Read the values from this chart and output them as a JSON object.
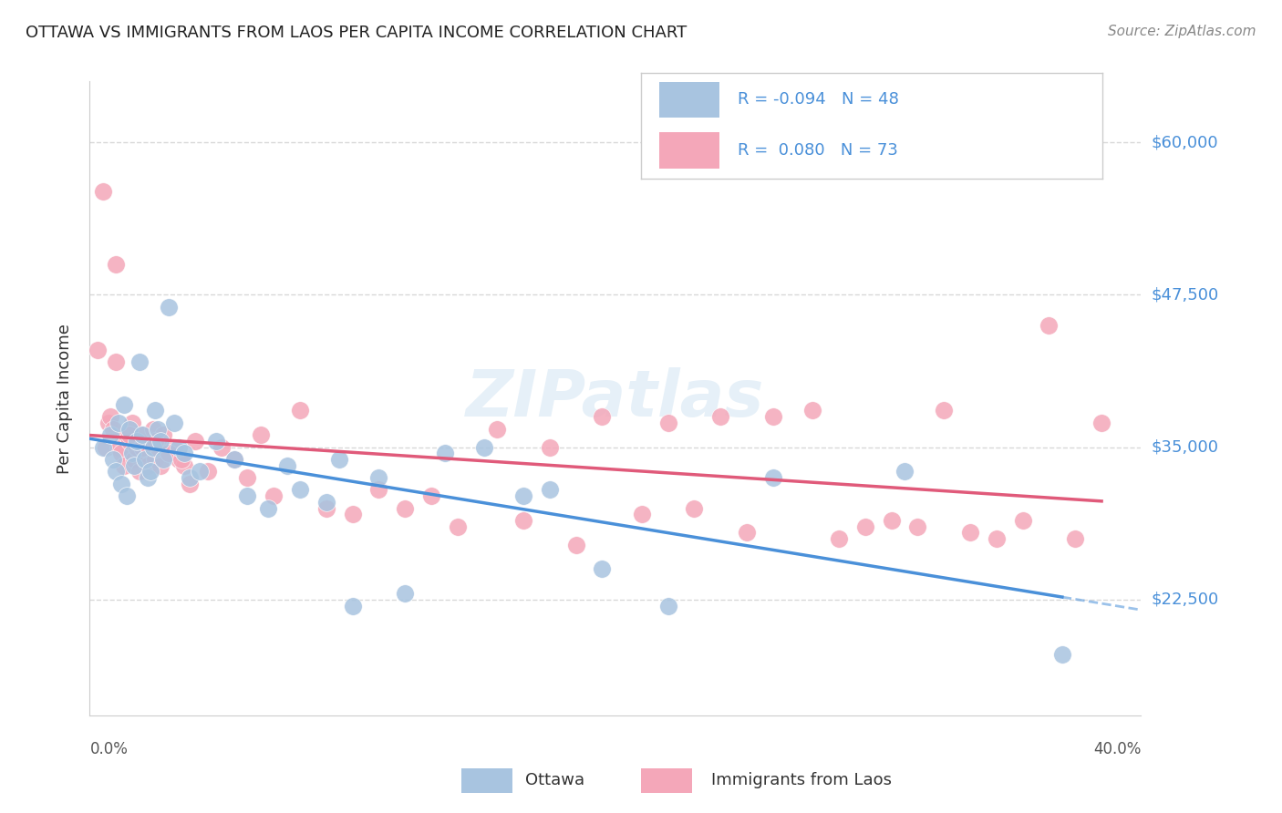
{
  "title": "OTTAWA VS IMMIGRANTS FROM LAOS PER CAPITA INCOME CORRELATION CHART",
  "source": "Source: ZipAtlas.com",
  "ylabel": "Per Capita Income",
  "ytick_labels": [
    "$22,500",
    "$35,000",
    "$47,500",
    "$60,000"
  ],
  "ytick_values": [
    22500,
    35000,
    47500,
    60000
  ],
  "ymin": 13000,
  "ymax": 65000,
  "xmin": 0.0,
  "xmax": 0.4,
  "legend_R": [
    -0.094,
    0.08
  ],
  "legend_N": [
    48,
    73
  ],
  "ottawa_color": "#a8c4e0",
  "laos_color": "#f4a7b9",
  "ottawa_line_color": "#4a90d9",
  "laos_line_color": "#e05a7a",
  "watermark": "ZIPatlas",
  "background_color": "#ffffff",
  "grid_color": "#d8d8d8",
  "ottawa_x": [
    0.005,
    0.008,
    0.009,
    0.01,
    0.011,
    0.012,
    0.013,
    0.014,
    0.015,
    0.016,
    0.017,
    0.018,
    0.019,
    0.02,
    0.021,
    0.022,
    0.023,
    0.024,
    0.025,
    0.026,
    0.027,
    0.028,
    0.03,
    0.032,
    0.034,
    0.036,
    0.038,
    0.042,
    0.048,
    0.055,
    0.06,
    0.068,
    0.075,
    0.08,
    0.09,
    0.095,
    0.1,
    0.11,
    0.12,
    0.135,
    0.15,
    0.165,
    0.175,
    0.195,
    0.22,
    0.26,
    0.31,
    0.37
  ],
  "ottawa_y": [
    35000,
    36000,
    34000,
    33000,
    37000,
    32000,
    38500,
    31000,
    36500,
    34500,
    33500,
    35500,
    42000,
    36000,
    34000,
    32500,
    33000,
    35000,
    38000,
    36500,
    35500,
    34000,
    46500,
    37000,
    35000,
    34500,
    32500,
    33000,
    35500,
    34000,
    31000,
    30000,
    33500,
    31500,
    30500,
    34000,
    22000,
    32500,
    23000,
    34500,
    35000,
    31000,
    31500,
    25000,
    22000,
    32500,
    33000,
    18000
  ],
  "laos_x": [
    0.003,
    0.005,
    0.006,
    0.007,
    0.008,
    0.009,
    0.01,
    0.011,
    0.012,
    0.013,
    0.014,
    0.015,
    0.016,
    0.017,
    0.018,
    0.019,
    0.02,
    0.021,
    0.022,
    0.023,
    0.024,
    0.025,
    0.026,
    0.027,
    0.028,
    0.03,
    0.032,
    0.034,
    0.036,
    0.038,
    0.04,
    0.045,
    0.05,
    0.055,
    0.06,
    0.065,
    0.07,
    0.08,
    0.09,
    0.1,
    0.11,
    0.12,
    0.13,
    0.14,
    0.155,
    0.165,
    0.175,
    0.185,
    0.195,
    0.21,
    0.22,
    0.23,
    0.24,
    0.25,
    0.26,
    0.275,
    0.285,
    0.295,
    0.305,
    0.315,
    0.325,
    0.335,
    0.345,
    0.355,
    0.365,
    0.375,
    0.385,
    0.01,
    0.015,
    0.02,
    0.025,
    0.03,
    0.035
  ],
  "laos_y": [
    43000,
    56000,
    35000,
    37000,
    37500,
    36500,
    42000,
    35000,
    34500,
    33500,
    36000,
    35500,
    37000,
    34000,
    35000,
    33000,
    36000,
    34500,
    33500,
    35000,
    36500,
    34000,
    35500,
    33500,
    36000,
    34500,
    35000,
    34000,
    33500,
    32000,
    35500,
    33000,
    35000,
    34000,
    32500,
    36000,
    31000,
    38000,
    30000,
    29500,
    31500,
    30000,
    31000,
    28500,
    36500,
    29000,
    35000,
    27000,
    37500,
    29500,
    37000,
    30000,
    37500,
    28000,
    37500,
    38000,
    27500,
    28500,
    29000,
    28500,
    38000,
    28000,
    27500,
    29000,
    45000,
    27500,
    37000,
    50000,
    36000,
    35000,
    35500,
    34500,
    34000
  ]
}
